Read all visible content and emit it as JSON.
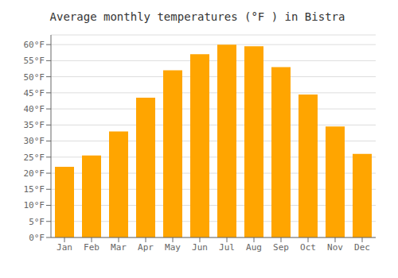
{
  "chart_data": {
    "type": "bar",
    "title": "Average monthly temperatures (°F ) in Bistra",
    "categories": [
      "Jan",
      "Feb",
      "Mar",
      "Apr",
      "May",
      "Jun",
      "Jul",
      "Aug",
      "Sep",
      "Oct",
      "Nov",
      "Dec"
    ],
    "values": [
      22,
      25.5,
      33,
      43.5,
      52,
      57,
      60,
      59.5,
      53,
      44.5,
      34.5,
      26
    ],
    "color": "#FFA500",
    "ylim": [
      0,
      63
    ],
    "yticks": [
      {
        "value": 0,
        "label": "0°F"
      },
      {
        "value": 5,
        "label": "5°F"
      },
      {
        "value": 10,
        "label": "10°F"
      },
      {
        "value": 15,
        "label": "15°F"
      },
      {
        "value": 20,
        "label": "20°F"
      },
      {
        "value": 25,
        "label": "25°F"
      },
      {
        "value": 30,
        "label": "30°F"
      },
      {
        "value": 35,
        "label": "35°F"
      },
      {
        "value": 40,
        "label": "40°F"
      },
      {
        "value": 45,
        "label": "45°F"
      },
      {
        "value": 50,
        "label": "50°F"
      },
      {
        "value": 55,
        "label": "55°F"
      },
      {
        "value": 60,
        "label": "60°F"
      }
    ],
    "grid": true
  }
}
